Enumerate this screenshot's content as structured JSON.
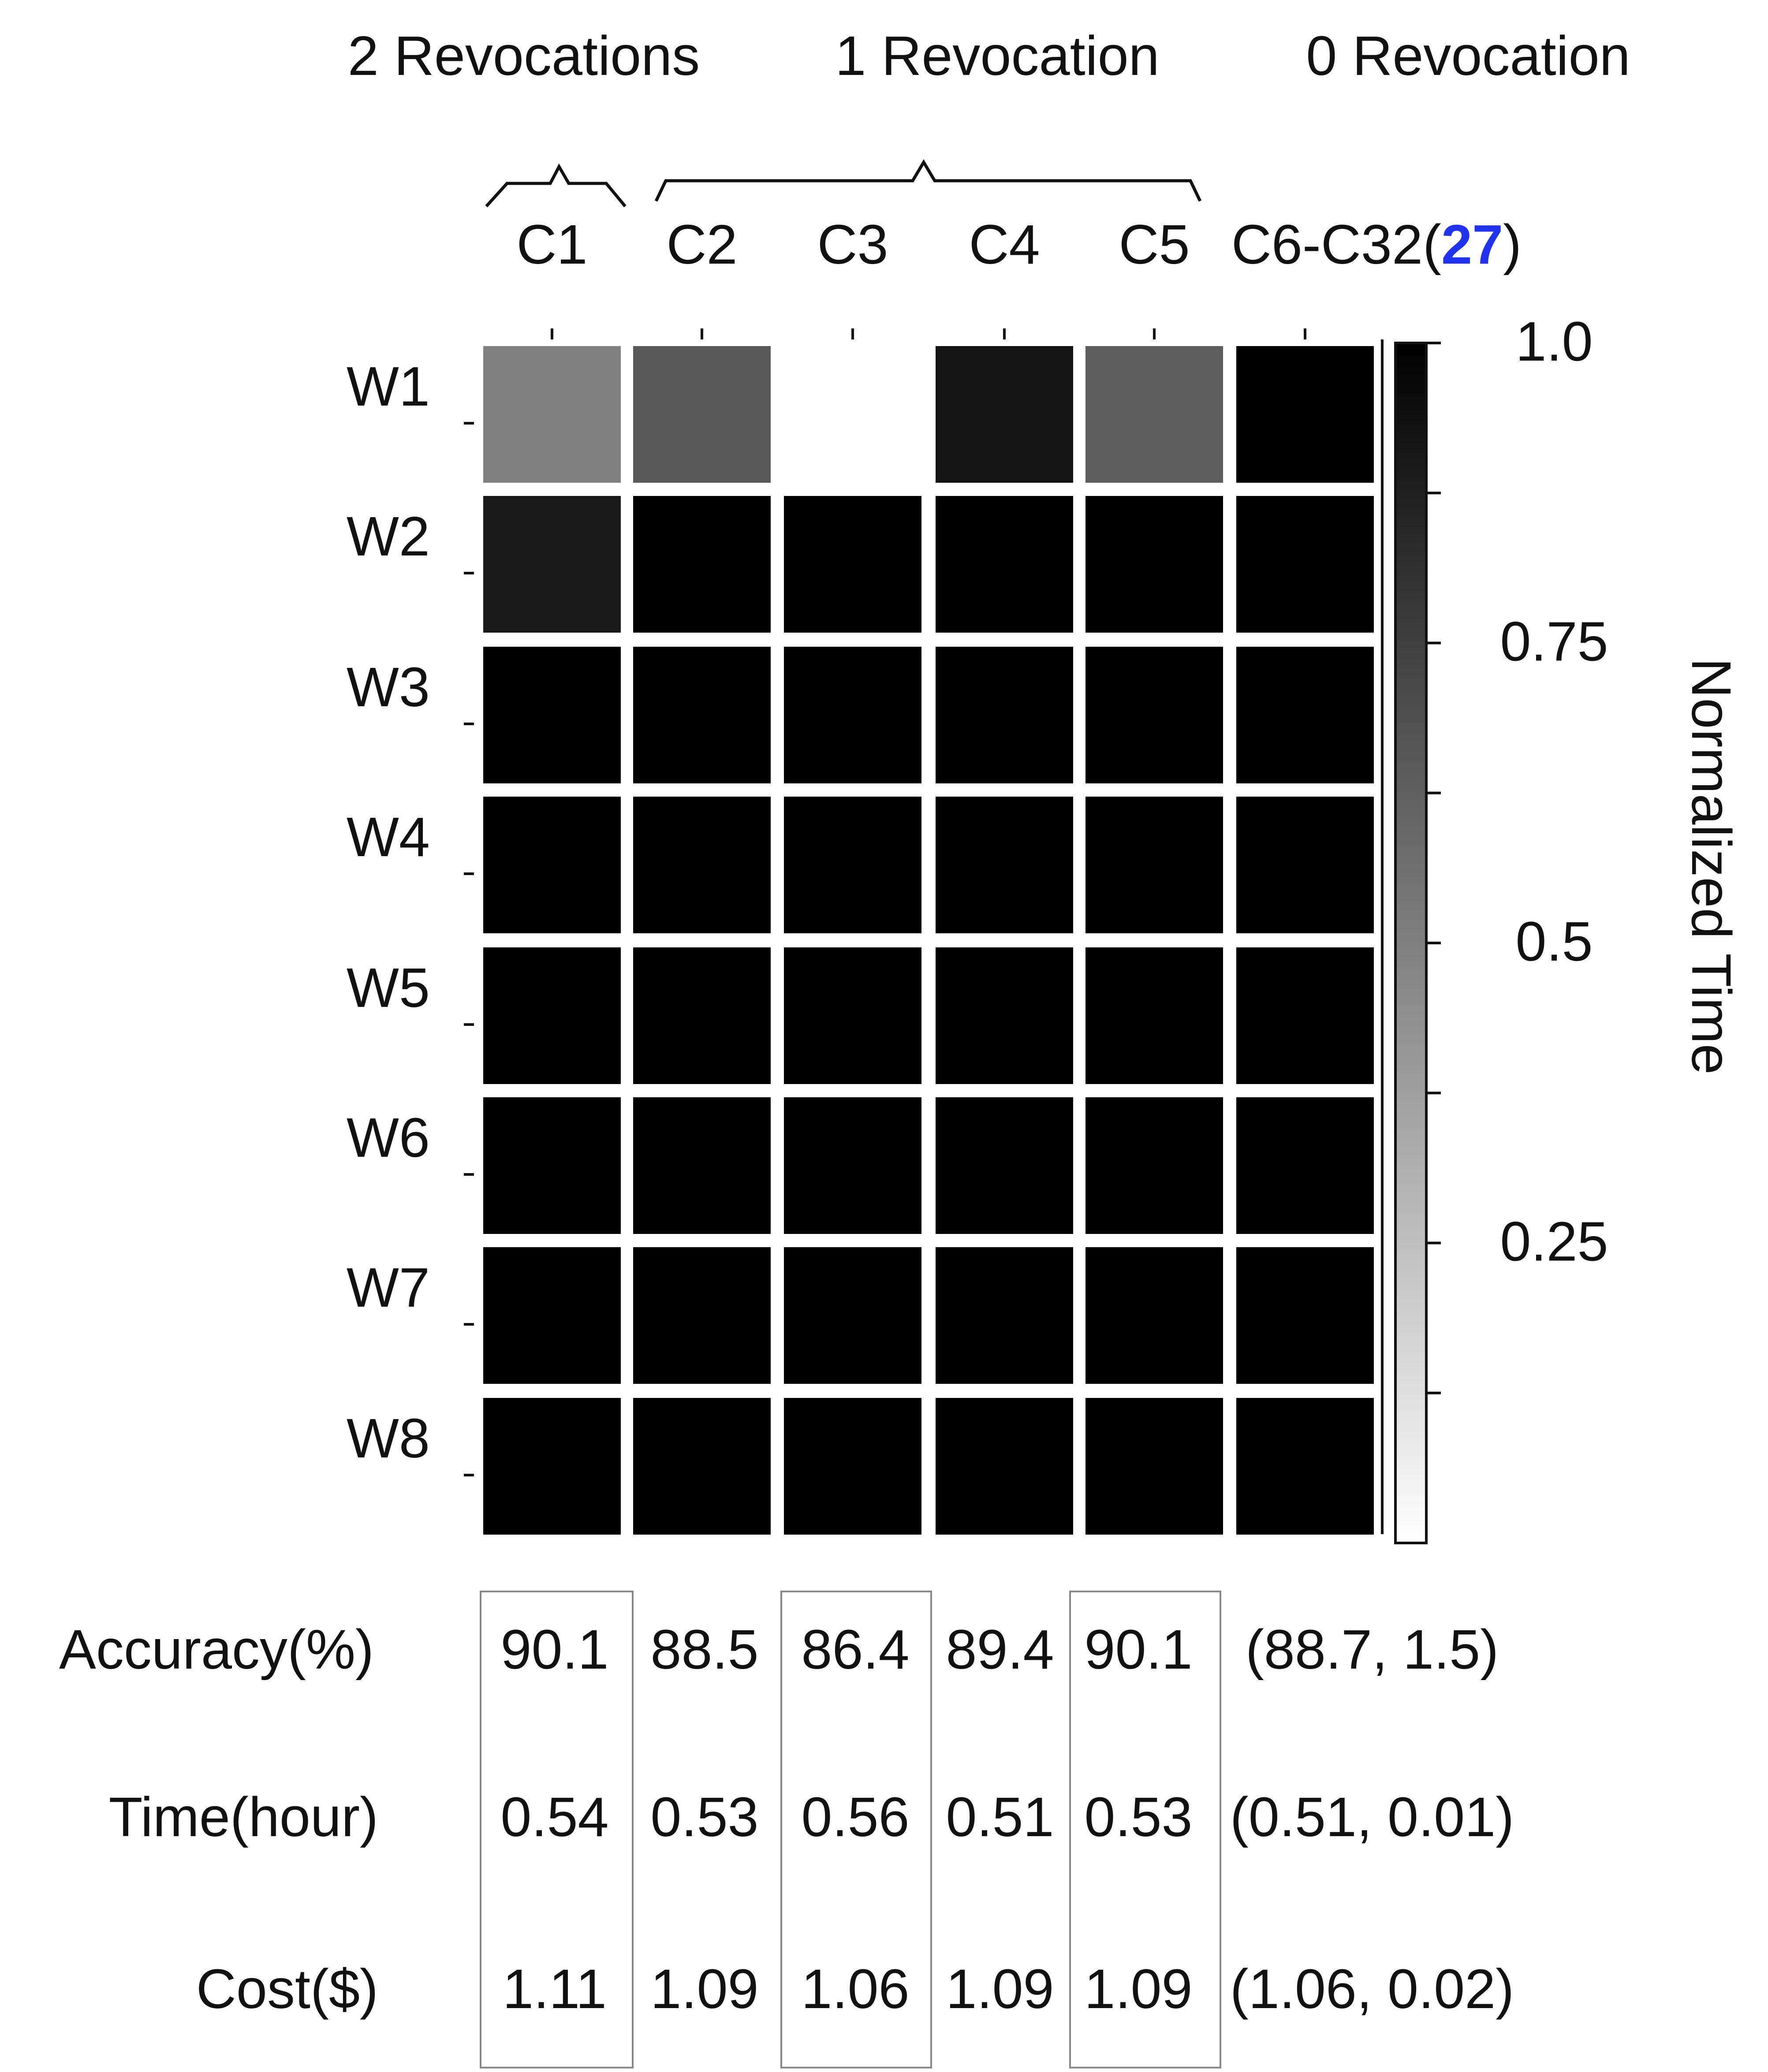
{
  "chart_data": {
    "type": "heatmap",
    "group_labels": [
      "2 Revocations",
      "1 Revocation",
      "0 Revocation"
    ],
    "groups": [
      {
        "label": "2 Revocations",
        "columns": [
          "C1"
        ]
      },
      {
        "label": "1 Revocation",
        "columns": [
          "C2",
          "C3",
          "C4",
          "C5"
        ]
      },
      {
        "label": "0 Revocation",
        "columns": [
          "C6-C32(27)"
        ]
      }
    ],
    "x_categories": [
      "C1",
      "C2",
      "C3",
      "C4",
      "C5"
    ],
    "last_category": {
      "prefix": "C6-C32(",
      "count": "27",
      "suffix": ")"
    },
    "y_categories": [
      "W1",
      "W2",
      "W3",
      "W4",
      "W5",
      "W6",
      "W7",
      "W8"
    ],
    "values": [
      [
        0.5,
        0.65,
        0.0,
        0.92,
        0.63,
        1.0
      ],
      [
        0.9,
        1.0,
        1.0,
        1.0,
        1.0,
        1.0
      ],
      [
        1.0,
        1.0,
        1.0,
        1.0,
        1.0,
        1.0
      ],
      [
        1.0,
        1.0,
        1.0,
        1.0,
        1.0,
        1.0
      ],
      [
        1.0,
        1.0,
        1.0,
        1.0,
        1.0,
        1.0
      ],
      [
        1.0,
        1.0,
        1.0,
        1.0,
        1.0,
        1.0
      ],
      [
        1.0,
        1.0,
        1.0,
        1.0,
        1.0,
        1.0
      ],
      [
        1.0,
        1.0,
        1.0,
        1.0,
        1.0,
        1.0
      ]
    ],
    "colorbar": {
      "label": "Normalized Time",
      "range": [
        0,
        1.0
      ],
      "tick_labels": [
        "1.0",
        "0.75",
        "0.5",
        "0.25"
      ],
      "tick_values": [
        1.0,
        0.75,
        0.5,
        0.25
      ],
      "colors": {
        "low": "#ffffff",
        "high": "#000000"
      }
    },
    "table": {
      "row_labels": [
        "Accuracy(%)",
        "Time(hour)",
        "Cost($)"
      ],
      "rows": [
        [
          "90.1",
          "88.5",
          "86.4",
          "89.4",
          "90.1",
          "(88.7, 1.5)"
        ],
        [
          "0.54",
          "0.53",
          "0.56",
          "0.51",
          "0.53",
          "(0.51, 0.01)"
        ],
        [
          "1.11",
          "1.09",
          "1.06",
          "1.09",
          "1.09",
          "(1.06, 0.02)"
        ]
      ],
      "boxed_columns": [
        "C1",
        "C3",
        "C5"
      ]
    }
  }
}
